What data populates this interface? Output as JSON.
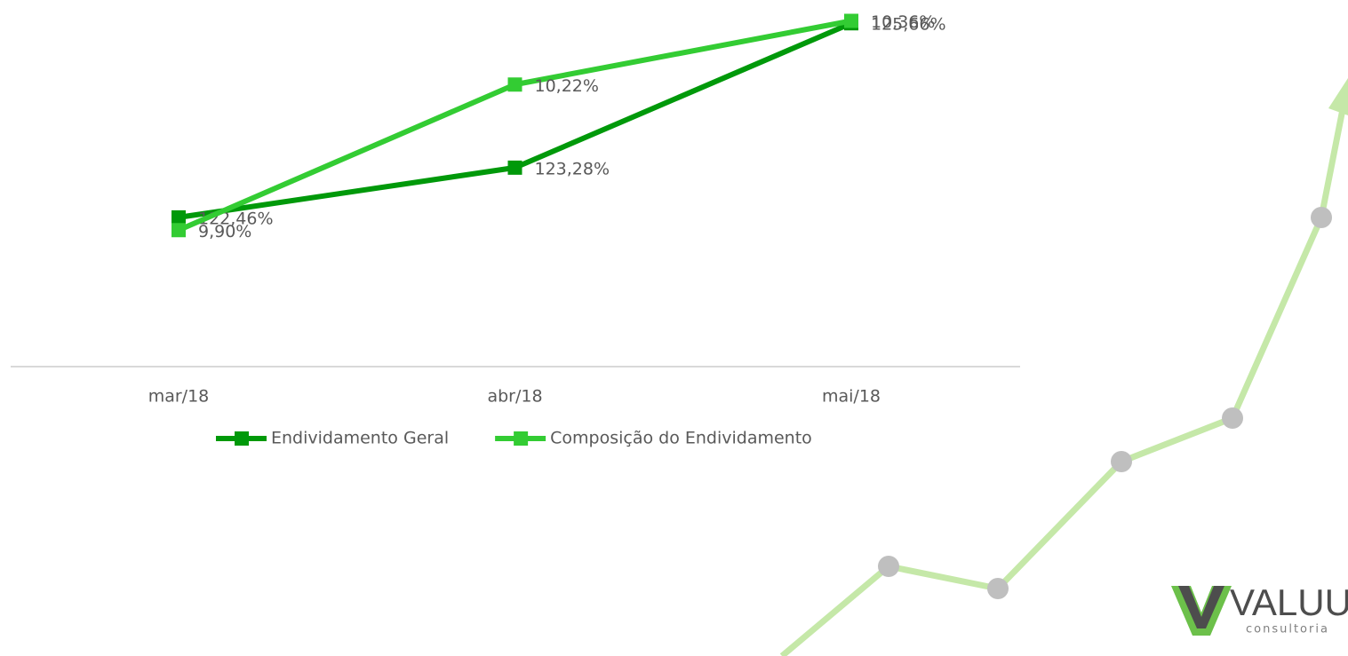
{
  "chart_data": {
    "type": "line",
    "categories": [
      "mar/18",
      "abr/18",
      "mai/18"
    ],
    "series": [
      {
        "name": "Endividamento Geral",
        "color": "#00990a",
        "values": [
          122.46,
          123.28,
          125.66
        ],
        "value_labels": [
          "122,46%",
          "123,28%",
          "125,66%"
        ]
      },
      {
        "name": "Composição do Endividamento",
        "color": "#33cc33",
        "axis": "y2",
        "values": [
          9.9,
          10.22,
          10.36
        ],
        "value_labels": [
          "9,90%",
          "10,22%",
          "10,36%"
        ]
      }
    ],
    "ylim": [
      120,
      126
    ],
    "y2lim": [
      9.6,
      10.4
    ],
    "legend": "bottom"
  },
  "logo": {
    "name": "VALUUI",
    "tagline": "consultoria"
  }
}
